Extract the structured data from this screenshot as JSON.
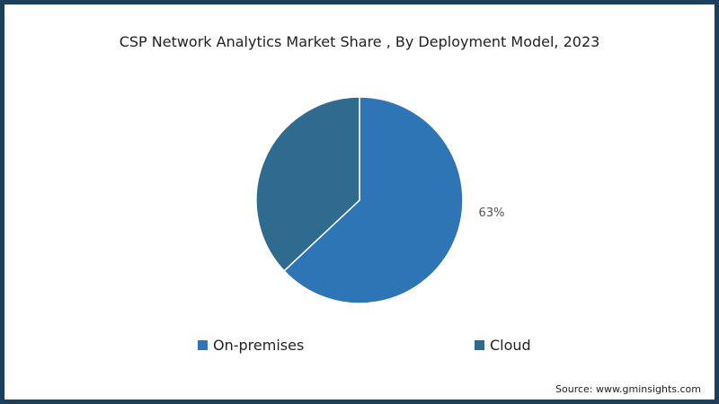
{
  "chart_data": {
    "type": "pie",
    "title": "CSP Network Analytics Market Share , By Deployment Model, 2023",
    "slices": [
      {
        "label": "On-premises",
        "value": 63,
        "color": "#2e75b6",
        "data_label": "63%"
      },
      {
        "label": "Cloud",
        "value": 37,
        "color": "#2e6b8e",
        "data_label": ""
      }
    ],
    "start": "top",
    "direction": "clockwise",
    "legend_placement": "bottom"
  },
  "source": "Source: www.gminsights.com"
}
